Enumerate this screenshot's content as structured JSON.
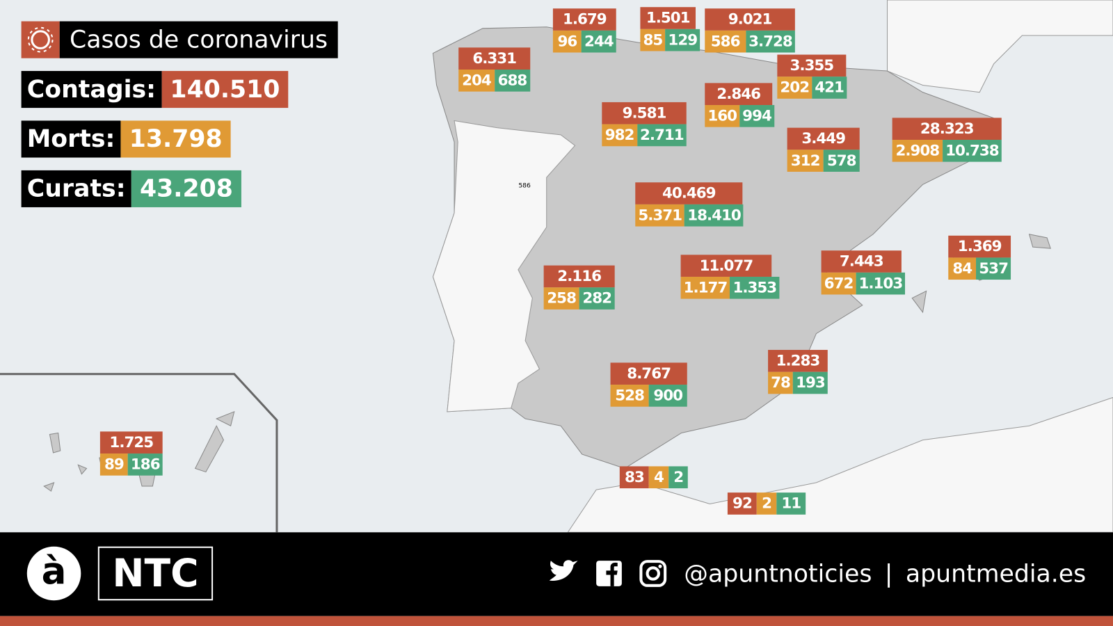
{
  "header": {
    "title": "Casos de coronavirus"
  },
  "totals": [
    {
      "label": "Contagis:",
      "value": "140.510"
    },
    {
      "label": "Morts:",
      "value": "13.798"
    },
    {
      "label": "Curats:",
      "value": "43.208"
    }
  ],
  "regions": [
    {
      "cases": "1.679",
      "deaths": "96",
      "recovered": "244"
    },
    {
      "cases": "1.501",
      "deaths": "85",
      "recovered": "129"
    },
    {
      "cases": "9.021",
      "deaths": "586",
      "recovered": "3.728"
    },
    {
      "cases": "6.331",
      "deaths": "204",
      "recovered": "688"
    },
    {
      "cases": "3.355",
      "deaths": "202",
      "recovered": "421"
    },
    {
      "cases": "2.846",
      "deaths": "160",
      "recovered": "994"
    },
    {
      "cases": "9.581",
      "deaths": "982",
      "recovered": "2.711"
    },
    {
      "cases": "3.449",
      "deaths": "312",
      "recovered": "578"
    },
    {
      "cases": "28.323",
      "deaths": "2.908",
      "recovered": "10.738"
    },
    {
      "cases": "40.469",
      "deaths": "5.371",
      "recovered": "18.410"
    },
    {
      "cases": "1.369",
      "deaths": "84",
      "recovered": "537"
    },
    {
      "cases": "7.443",
      "deaths": "672",
      "recovered": "1.103"
    },
    {
      "cases": "2.116",
      "deaths": "258",
      "recovered": "282"
    },
    {
      "cases": "11.077",
      "deaths": "1.177",
      "recovered": "1.353"
    },
    {
      "cases": "1.283",
      "deaths": "78",
      "recovered": "193"
    },
    {
      "cases": "8.767",
      "deaths": "528",
      "recovered": "900"
    },
    {
      "cases": "1.725",
      "deaths": "89",
      "recovered": "186"
    },
    {
      "cases": "83",
      "deaths": "4",
      "recovered": "2"
    },
    {
      "cases": "92",
      "deaths": "2",
      "recovered": "11"
    }
  ],
  "map_note": "586",
  "footer": {
    "logo": "à",
    "brand": "NTC",
    "handle": "@apuntnoticies",
    "separator": "|",
    "site": "apuntmedia.es"
  }
}
